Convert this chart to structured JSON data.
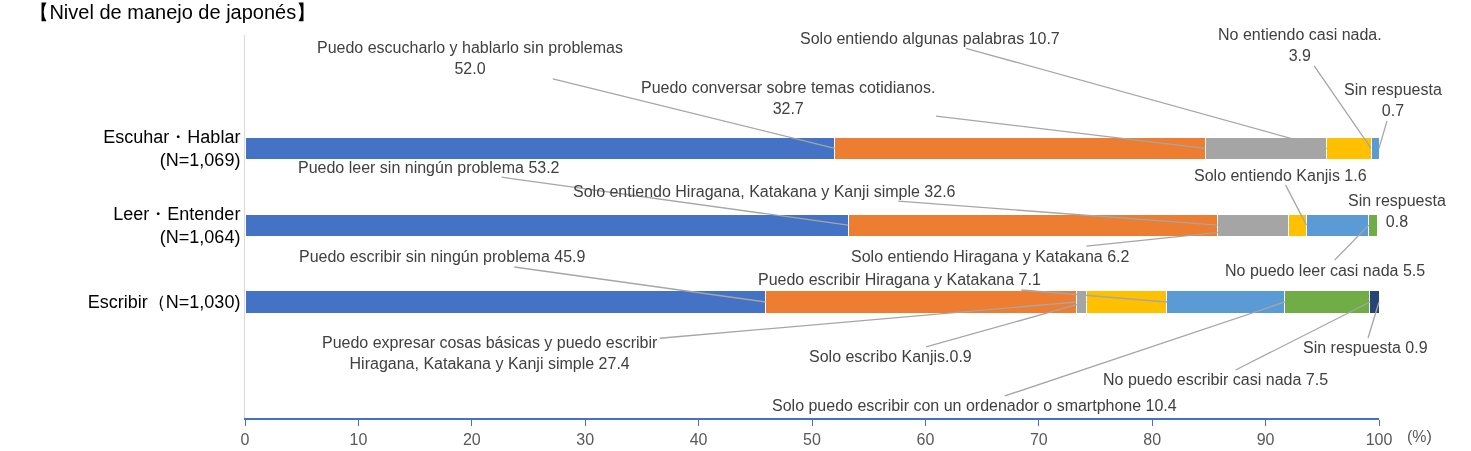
{
  "chart_data": {
    "type": "bar",
    "orientation": "horizontal",
    "stacked": true,
    "title": "【Nivel de manejo de japonés】",
    "xlabel": "(%)",
    "categories": [
      "Escuhar・Hablar\n(N=1,069)",
      "Leer・Entender\n(N=1,064)",
      "Escribir（N=1,030)"
    ],
    "series": [
      {
        "color": "#4472c4",
        "values": [
          52.0,
          53.2,
          45.9
        ]
      },
      {
        "color": "#ed7d31",
        "values": [
          32.7,
          32.6,
          27.4
        ]
      },
      {
        "color": "#a5a5a5",
        "values": [
          10.7,
          6.2,
          0.9
        ]
      },
      {
        "color": "#ffc000",
        "values": [
          3.9,
          1.6,
          7.1
        ]
      },
      {
        "color": "#5b9bd5",
        "values": [
          0.7,
          5.5,
          10.4
        ]
      },
      {
        "color": "#70ad47",
        "values": [
          null,
          0.8,
          7.5
        ]
      },
      {
        "color": "#264478",
        "values": [
          null,
          null,
          0.9
        ]
      }
    ],
    "xlim": [
      0,
      100
    ],
    "xticks": [
      0,
      10,
      20,
      30,
      40,
      50,
      60,
      70,
      80,
      90,
      100
    ],
    "annotations": [
      {
        "text": "Puedo escucharlo y hablarlo sin problemas\n52.0",
        "x": 52,
        "y": "Escuhar・Hablar\n(N=1,069)"
      },
      {
        "text": "Puedo conversar sobre temas cotidianos.\n32.7",
        "x": 84.7,
        "y": "Escuhar・Hablar\n(N=1,069)"
      },
      {
        "text": "Solo entiendo algunas palabras 10.7",
        "x": 95.4,
        "y": "Escuhar・Hablar\n(N=1,069)"
      },
      {
        "text": "No entiendo casi nada.\n3.9",
        "x": 99.3,
        "y": "Escuhar・Hablar\n(N=1,069)"
      },
      {
        "text": "Sin respuesta\n0.7",
        "x": 100,
        "y": "Escuhar・Hablar\n(N=1,069)"
      },
      {
        "text": "Puedo leer sin ningún problema 53.2",
        "x": 53.2,
        "y": "Leer・Entender\n(N=1,064)"
      },
      {
        "text": "Solo entiendo Hiragana, Katakana y Kanji simple 32.6",
        "x": 85.8,
        "y": "Leer・Entender\n(N=1,064)"
      },
      {
        "text": "Solo entiendo Hiragana y Katakana 6.2",
        "x": 92.0,
        "y": "Leer・Entender\n(N=1,064)"
      },
      {
        "text": "Solo entiendo Kanjis 1.6",
        "x": 93.6,
        "y": "Leer・Entender\n(N=1,064)"
      },
      {
        "text": "No puedo leer casi nada 5.5",
        "x": 99.1,
        "y": "Leer・Entender\n(N=1,064)"
      },
      {
        "text": "Sin respuesta\n0.8",
        "x": 99.9,
        "y": "Leer・Entender\n(N=1,064)"
      },
      {
        "text": "Puedo escribir sin ningún problema 45.9",
        "x": 45.9,
        "y": "Escribir（N=1,030)"
      },
      {
        "text": "Puedo escribir Hiragana y Katakana 7.1",
        "x": 81.3,
        "y": "Escribir（N=1,030)"
      },
      {
        "text": "Puedo expresar cosas básicas y puedo escribir\nHiragana, Katakana y Kanji simple 27.4",
        "x": 73.3,
        "y": "Escribir（N=1,030)"
      },
      {
        "text": "Solo escribo Kanjis.0.9",
        "x": 74.2,
        "y": "Escribir（N=1,030)"
      },
      {
        "text": "Solo puedo escribir con un ordenador o smartphone 10.4",
        "x": 91.7,
        "y": "Escribir（N=1,030)"
      },
      {
        "text": "No puedo escribir casi nada 7.5",
        "x": 99.2,
        "y": "Escribir（N=1,030)"
      },
      {
        "text": "Sin respuesta 0.9",
        "x": 100,
        "y": "Escribir（N=1,030)"
      }
    ]
  }
}
